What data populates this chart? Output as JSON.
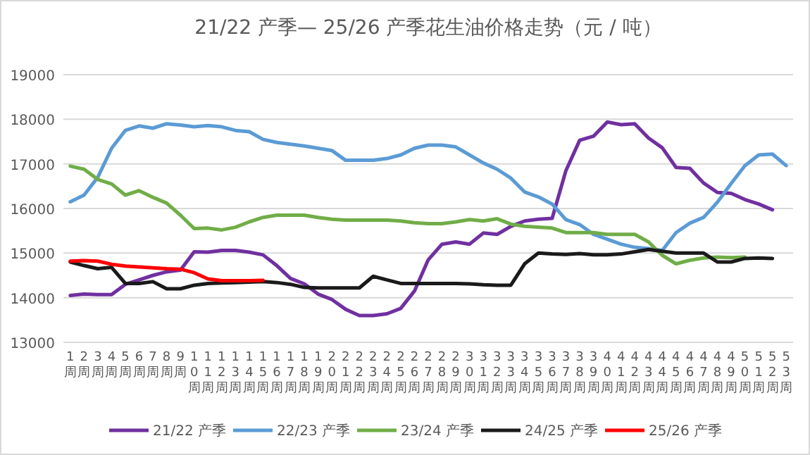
{
  "chart_data": {
    "type": "line",
    "title": "21/22 产季— 25/26 产季花生油价格走势（元 / 吨）",
    "categories": [
      "1周",
      "2周",
      "3周",
      "4周",
      "5周",
      "6周",
      "7周",
      "8周",
      "9周",
      "10周",
      "11周",
      "12周",
      "13周",
      "14周",
      "15周",
      "16周",
      "17周",
      "18周",
      "19周",
      "20周",
      "21周",
      "22周",
      "23周",
      "24周",
      "25周",
      "26周",
      "27周",
      "28周",
      "29周",
      "30周",
      "31周",
      "32周",
      "33周",
      "34周",
      "35周",
      "36周",
      "37周",
      "38周",
      "39周",
      "40周",
      "41周",
      "42周",
      "43周",
      "44周",
      "45周",
      "46周",
      "47周",
      "48周",
      "49周",
      "50周",
      "51周",
      "52周",
      "53周"
    ],
    "series": [
      {
        "name": "21/22 产季",
        "color": "#7030a0",
        "values": [
          14050,
          14080,
          14070,
          14070,
          14300,
          14400,
          14500,
          14580,
          14620,
          15030,
          15020,
          15060,
          15060,
          15020,
          14960,
          14720,
          14430,
          14310,
          14080,
          13960,
          13740,
          13600,
          13600,
          13640,
          13760,
          14150,
          14850,
          15200,
          15250,
          15200,
          15450,
          15420,
          15600,
          15720,
          15760,
          15780,
          16850,
          17530,
          17620,
          17940,
          17880,
          17900,
          17580,
          17360,
          16920,
          16900,
          16570,
          16360,
          16340,
          16200,
          16100,
          15970,
          null
        ]
      },
      {
        "name": "22/23 产季",
        "color": "#5b9bd5",
        "values": [
          16150,
          16300,
          16700,
          17350,
          17750,
          17850,
          17800,
          17900,
          17870,
          17830,
          17860,
          17830,
          17750,
          17720,
          17550,
          17480,
          17440,
          17400,
          17350,
          17300,
          17080,
          17080,
          17080,
          17120,
          17200,
          17350,
          17420,
          17420,
          17380,
          17200,
          17020,
          16880,
          16680,
          16370,
          16260,
          16100,
          15750,
          15640,
          15420,
          15310,
          15200,
          15130,
          15100,
          15060,
          15460,
          15670,
          15800,
          16140,
          16560,
          16960,
          17200,
          17220,
          16960
        ]
      },
      {
        "name": "23/24 产季",
        "color": "#70ad47",
        "values": [
          16950,
          16880,
          16650,
          16550,
          16300,
          16400,
          16250,
          16120,
          15850,
          15550,
          15560,
          15520,
          15580,
          15700,
          15800,
          15850,
          15850,
          15850,
          15800,
          15760,
          15740,
          15740,
          15740,
          15740,
          15720,
          15680,
          15660,
          15660,
          15700,
          15750,
          15720,
          15770,
          15650,
          15600,
          15580,
          15560,
          15460,
          15460,
          15460,
          15420,
          15420,
          15420,
          15250,
          14950,
          14760,
          14840,
          14890,
          14910,
          14900,
          14910,
          null,
          null,
          null
        ]
      },
      {
        "name": "24/25 产季",
        "color": "#1a1a1a",
        "values": [
          14800,
          14720,
          14650,
          14680,
          14320,
          14320,
          14360,
          14200,
          14200,
          14280,
          14320,
          14330,
          14340,
          14350,
          14360,
          14340,
          14300,
          14230,
          14220,
          14220,
          14220,
          14220,
          14480,
          14400,
          14320,
          14320,
          14320,
          14320,
          14320,
          14310,
          14290,
          14280,
          14280,
          14760,
          15000,
          14980,
          14970,
          14990,
          14960,
          14960,
          14980,
          15030,
          15080,
          15040,
          15000,
          15000,
          15000,
          14800,
          14800,
          14880,
          14890,
          14880,
          null
        ]
      },
      {
        "name": "25/26 产季",
        "color": "#ff0000",
        "values": [
          14820,
          14830,
          14820,
          14750,
          14710,
          14690,
          14670,
          14650,
          14640,
          14560,
          14420,
          14380,
          14380,
          14380,
          14390,
          null,
          null,
          null,
          null,
          null,
          null,
          null,
          null,
          null,
          null,
          null,
          null,
          null,
          null,
          null,
          null,
          null,
          null,
          null,
          null,
          null,
          null,
          null,
          null,
          null,
          null,
          null,
          null,
          null,
          null,
          null,
          null,
          null,
          null,
          null,
          null,
          null,
          null
        ]
      }
    ],
    "ylim": [
      13000,
      19000
    ],
    "yticks": [
      13000,
      14000,
      15000,
      16000,
      17000,
      18000,
      19000
    ],
    "grid": "y",
    "legend": "bottom",
    "marker": "none",
    "line_style": "solid"
  }
}
